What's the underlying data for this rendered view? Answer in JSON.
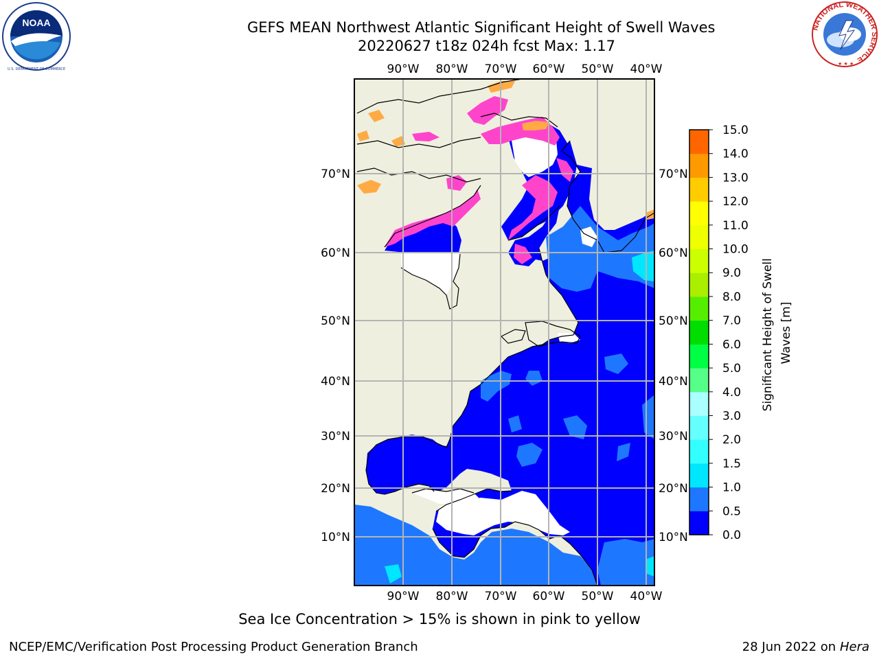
{
  "title": {
    "line1": "GEFS MEAN Northwest Atlantic Significant Height of Swell Waves",
    "line2": "20220627 t18z 024h fcst   Max: 1.17"
  },
  "logos": {
    "left": {
      "icon": "noaa-logo",
      "text": "NOAA",
      "ring_text": "NATIONAL OCEANIC AND ATMOSPHERIC ADMINISTRATION · U.S. DEPARTMENT OF COMMERCE"
    },
    "right": {
      "icon": "national-weather-service-logo",
      "ring_text": "NATIONAL WEATHER SERVICE"
    }
  },
  "map": {
    "lon_labels": [
      "90°W",
      "80°W",
      "70°W",
      "60°W",
      "50°W",
      "40°W"
    ],
    "lat_labels": [
      "70°N",
      "60°N",
      "50°N",
      "40°N",
      "30°N",
      "20°N",
      "10°N"
    ],
    "colors": {
      "land": "#efefdf",
      "ocean_low": "#0000ff",
      "ocean_mid": "#1e78ff",
      "ocean_high": "#00ffff",
      "grid": "#b4b4b4",
      "no_data": "#ffffff",
      "ice_pink": "#ff44cc",
      "ice_orange": "#ffaa44"
    }
  },
  "colorbar": {
    "title": "Significant Height of Swell Waves [m]",
    "ticks": [
      "15.0",
      "14.0",
      "13.0",
      "12.0",
      "11.0",
      "10.0",
      "9.0",
      "8.0",
      "7.0",
      "6.0",
      "5.0",
      "4.0",
      "3.0",
      "2.0",
      "1.5",
      "1.0",
      "0.5",
      "0.0"
    ],
    "colors_bottom_to_top": [
      "#0000ff",
      "#1e78ff",
      "#00e6ff",
      "#33ffff",
      "#66ffff",
      "#aaffff",
      "#55ff88",
      "#00ff44",
      "#00dd00",
      "#55ee00",
      "#aaee00",
      "#ccff00",
      "#eeff00",
      "#ffff00",
      "#ffcc00",
      "#ff9900",
      "#ff6600",
      "#ff3300",
      "#ff0000"
    ]
  },
  "caption": "Sea Ice Concentration > 15% is shown in pink to yellow",
  "footer": {
    "left": "NCEP/EMC/Verification Post Processing Product Generation Branch",
    "right_date": "28 Jun 2022 on",
    "right_host": "Hera"
  }
}
